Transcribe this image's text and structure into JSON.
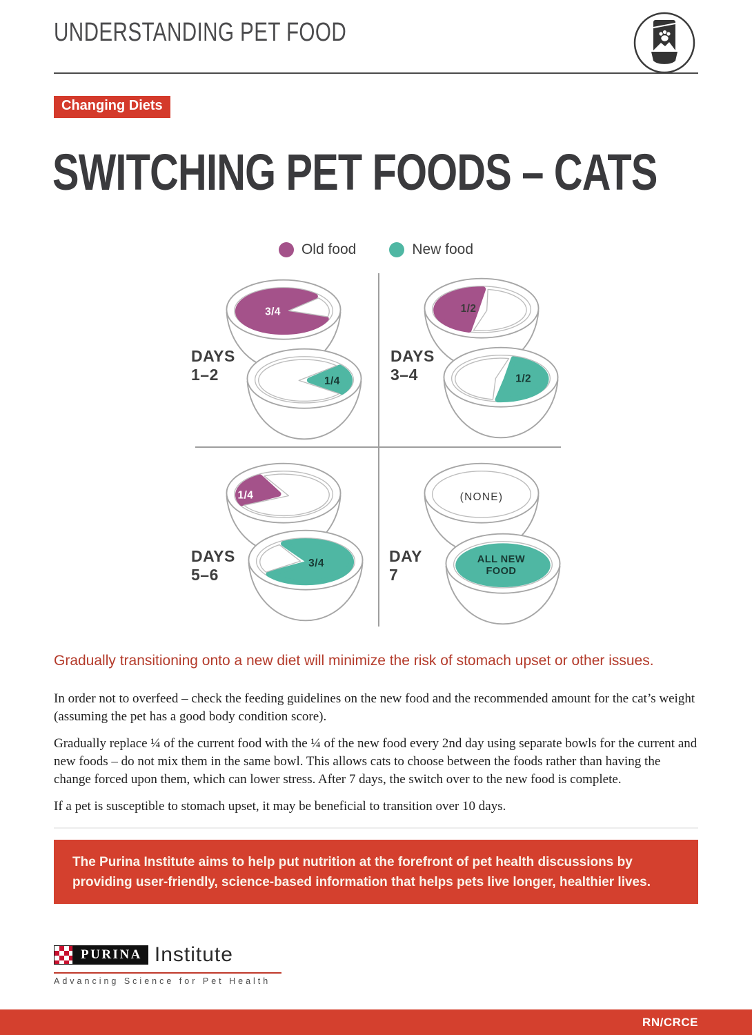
{
  "header": {
    "title": "UNDERSTANDING PET FOOD",
    "icon": "pet-food-bag-bowl-icon"
  },
  "badge": "Changing Diets",
  "title": "SWITCHING PET FOODS – CATS",
  "legend": {
    "old": {
      "label": "Old food",
      "color": "#a4528a"
    },
    "new": {
      "label": "New food",
      "color": "#4fb7a3"
    }
  },
  "diagram": {
    "groups": [
      {
        "id": "days-1-2",
        "label_line1": "DAYS",
        "label_line2": "1–2",
        "bowls": [
          {
            "food": "old",
            "variant": "three_quarter_left",
            "amount": "3/4",
            "label_color": "#ffffff"
          },
          {
            "food": "new",
            "variant": "quarter_right",
            "amount": "1/4",
            "label_color": "#173832"
          }
        ]
      },
      {
        "id": "days-3-4",
        "label_line1": "DAYS",
        "label_line2": "3–4",
        "bowls": [
          {
            "food": "old",
            "variant": "half_left",
            "amount": "1/2",
            "label_color": "#3a3a3a"
          },
          {
            "food": "new",
            "variant": "half_right",
            "amount": "1/2",
            "label_color": "#173832"
          }
        ]
      },
      {
        "id": "days-5-6",
        "label_line1": "DAYS",
        "label_line2": "5–6",
        "bowls": [
          {
            "food": "old",
            "variant": "quarter_left",
            "amount": "1/4",
            "label_color": "#ffffff"
          },
          {
            "food": "new",
            "variant": "three_quarter_right",
            "amount": "3/4",
            "label_color": "#173832"
          }
        ]
      },
      {
        "id": "day-7",
        "label_line1": "DAY",
        "label_line2": "7",
        "bowls": [
          {
            "food": "none",
            "variant": "empty",
            "amount": "(NONE)",
            "label_color": "#3a3a3a"
          },
          {
            "food": "new",
            "variant": "full",
            "amount": "ALL NEW\nFOOD",
            "label_color": "#173832"
          }
        ]
      }
    ]
  },
  "callout": "Gradually transitioning onto a new diet will minimize the risk of stomach upset or other issues.",
  "paragraphs": [
    "In order not to overfeed – check the feeding guidelines on the new food and the recommended amount for the cat’s weight (assuming the pet has a good body condition score).",
    "Gradually replace ¼ of the current food with the ¼ of the new food every 2nd day using separate bowls for the current and new foods – do not mix them in the same bowl. This allows cats to choose between the foods rather than having the change forced upon them, which can lower stress. After 7 days, the switch over to the new food is complete.",
    "If a pet is susceptible to stomach upset, it may be beneficial to transition over 10 days."
  ],
  "banner": "The Purina Institute aims to help put nutrition at the forefront of pet health discussions by providing user-friendly, science-based information that helps pets live longer, healthier lives.",
  "logo": {
    "brand": "PURINA",
    "word": "Institute",
    "tagline": "Advancing Science for Pet Health"
  },
  "footer": {
    "code": "RN/CRCE"
  },
  "theme": {
    "red": "#d4402e",
    "badge_red": "#d43a2b",
    "callout_red": "#b43b2b",
    "old_food": "#a4528a",
    "new_food": "#4fb7a3"
  }
}
